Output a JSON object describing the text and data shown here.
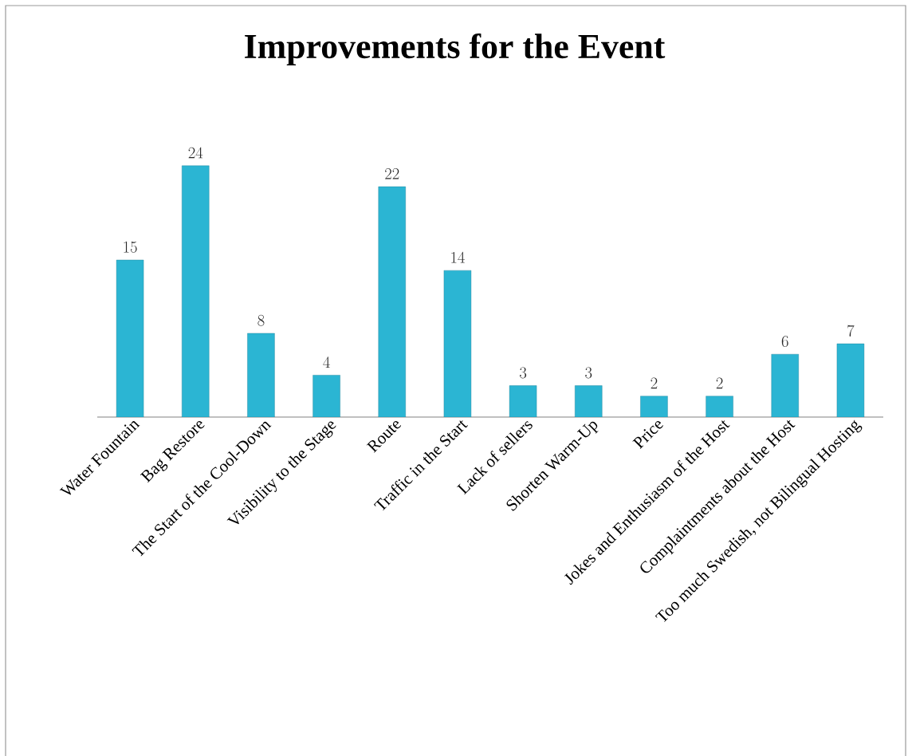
{
  "chart_data": {
    "type": "bar",
    "title": "Improvements for the Event",
    "categories": [
      "Water Fountain",
      "Bag Restore",
      "The Start of the Cool-Down",
      "Visibility to the Stage",
      "Route",
      "Traffic in the Start",
      "Lack of sellers",
      "Shorten Warm-Up",
      "Price",
      "Jokes and Enthusiasm of the Host",
      "Complaintments about the Host",
      "Too much Swedish, not Bilingual Hosting"
    ],
    "values": [
      15,
      24,
      8,
      4,
      22,
      14,
      3,
      3,
      2,
      2,
      6,
      7
    ],
    "color": "#2bb5d3",
    "data_labels": true
  }
}
